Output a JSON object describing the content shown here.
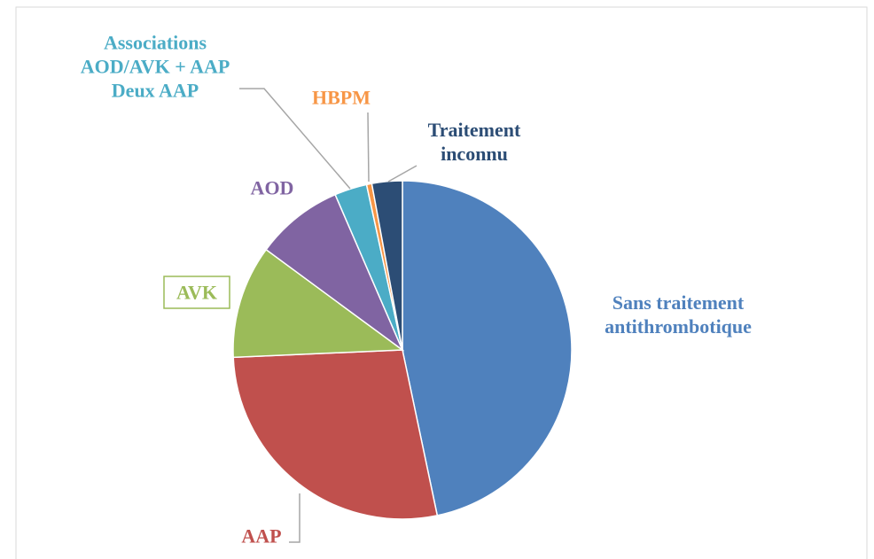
{
  "chart_data": {
    "type": "pie",
    "categories": [
      "Sans traitement\nantithrombotique",
      "AAP",
      "AVK",
      "AOD",
      "Associations\nAOD/AVK + AAP\nDeux AAP",
      "HBPM",
      "Traitement\ninconnu"
    ],
    "values": [
      46.7,
      27.6,
      10.8,
      8.4,
      3.1,
      0.5,
      2.9
    ],
    "colors": [
      "#4f81bd",
      "#c0504d",
      "#9bbb59",
      "#8064a2",
      "#4bacc6",
      "#f79646",
      "#2c4d75"
    ]
  }
}
